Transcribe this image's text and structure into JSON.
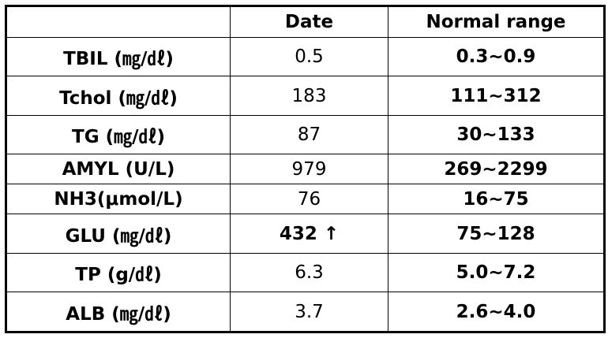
{
  "table": {
    "header": {
      "date": "Date",
      "normal_range": "Normal range"
    },
    "rows": [
      [
        "TBIL (㎎/㎗)",
        "0.5",
        "0.3~0.9"
      ],
      [
        "Tchol (㎎/㎗)",
        "183",
        "111~312"
      ],
      [
        "TG (㎎/㎗)",
        "87",
        "30~133"
      ],
      [
        "AMYL (U/L)",
        "979",
        "269~2299"
      ],
      [
        "NH3(μmol/L)",
        "76",
        "16~75"
      ],
      [
        "GLU (㎎/㎗)",
        "432 ↑",
        "75~128"
      ],
      [
        "TP (g/㎗)",
        "6.3",
        "5.0~7.2"
      ],
      [
        "ALB (㎎/㎗)",
        "3.7",
        "2.6~4.0"
      ]
    ]
  }
}
